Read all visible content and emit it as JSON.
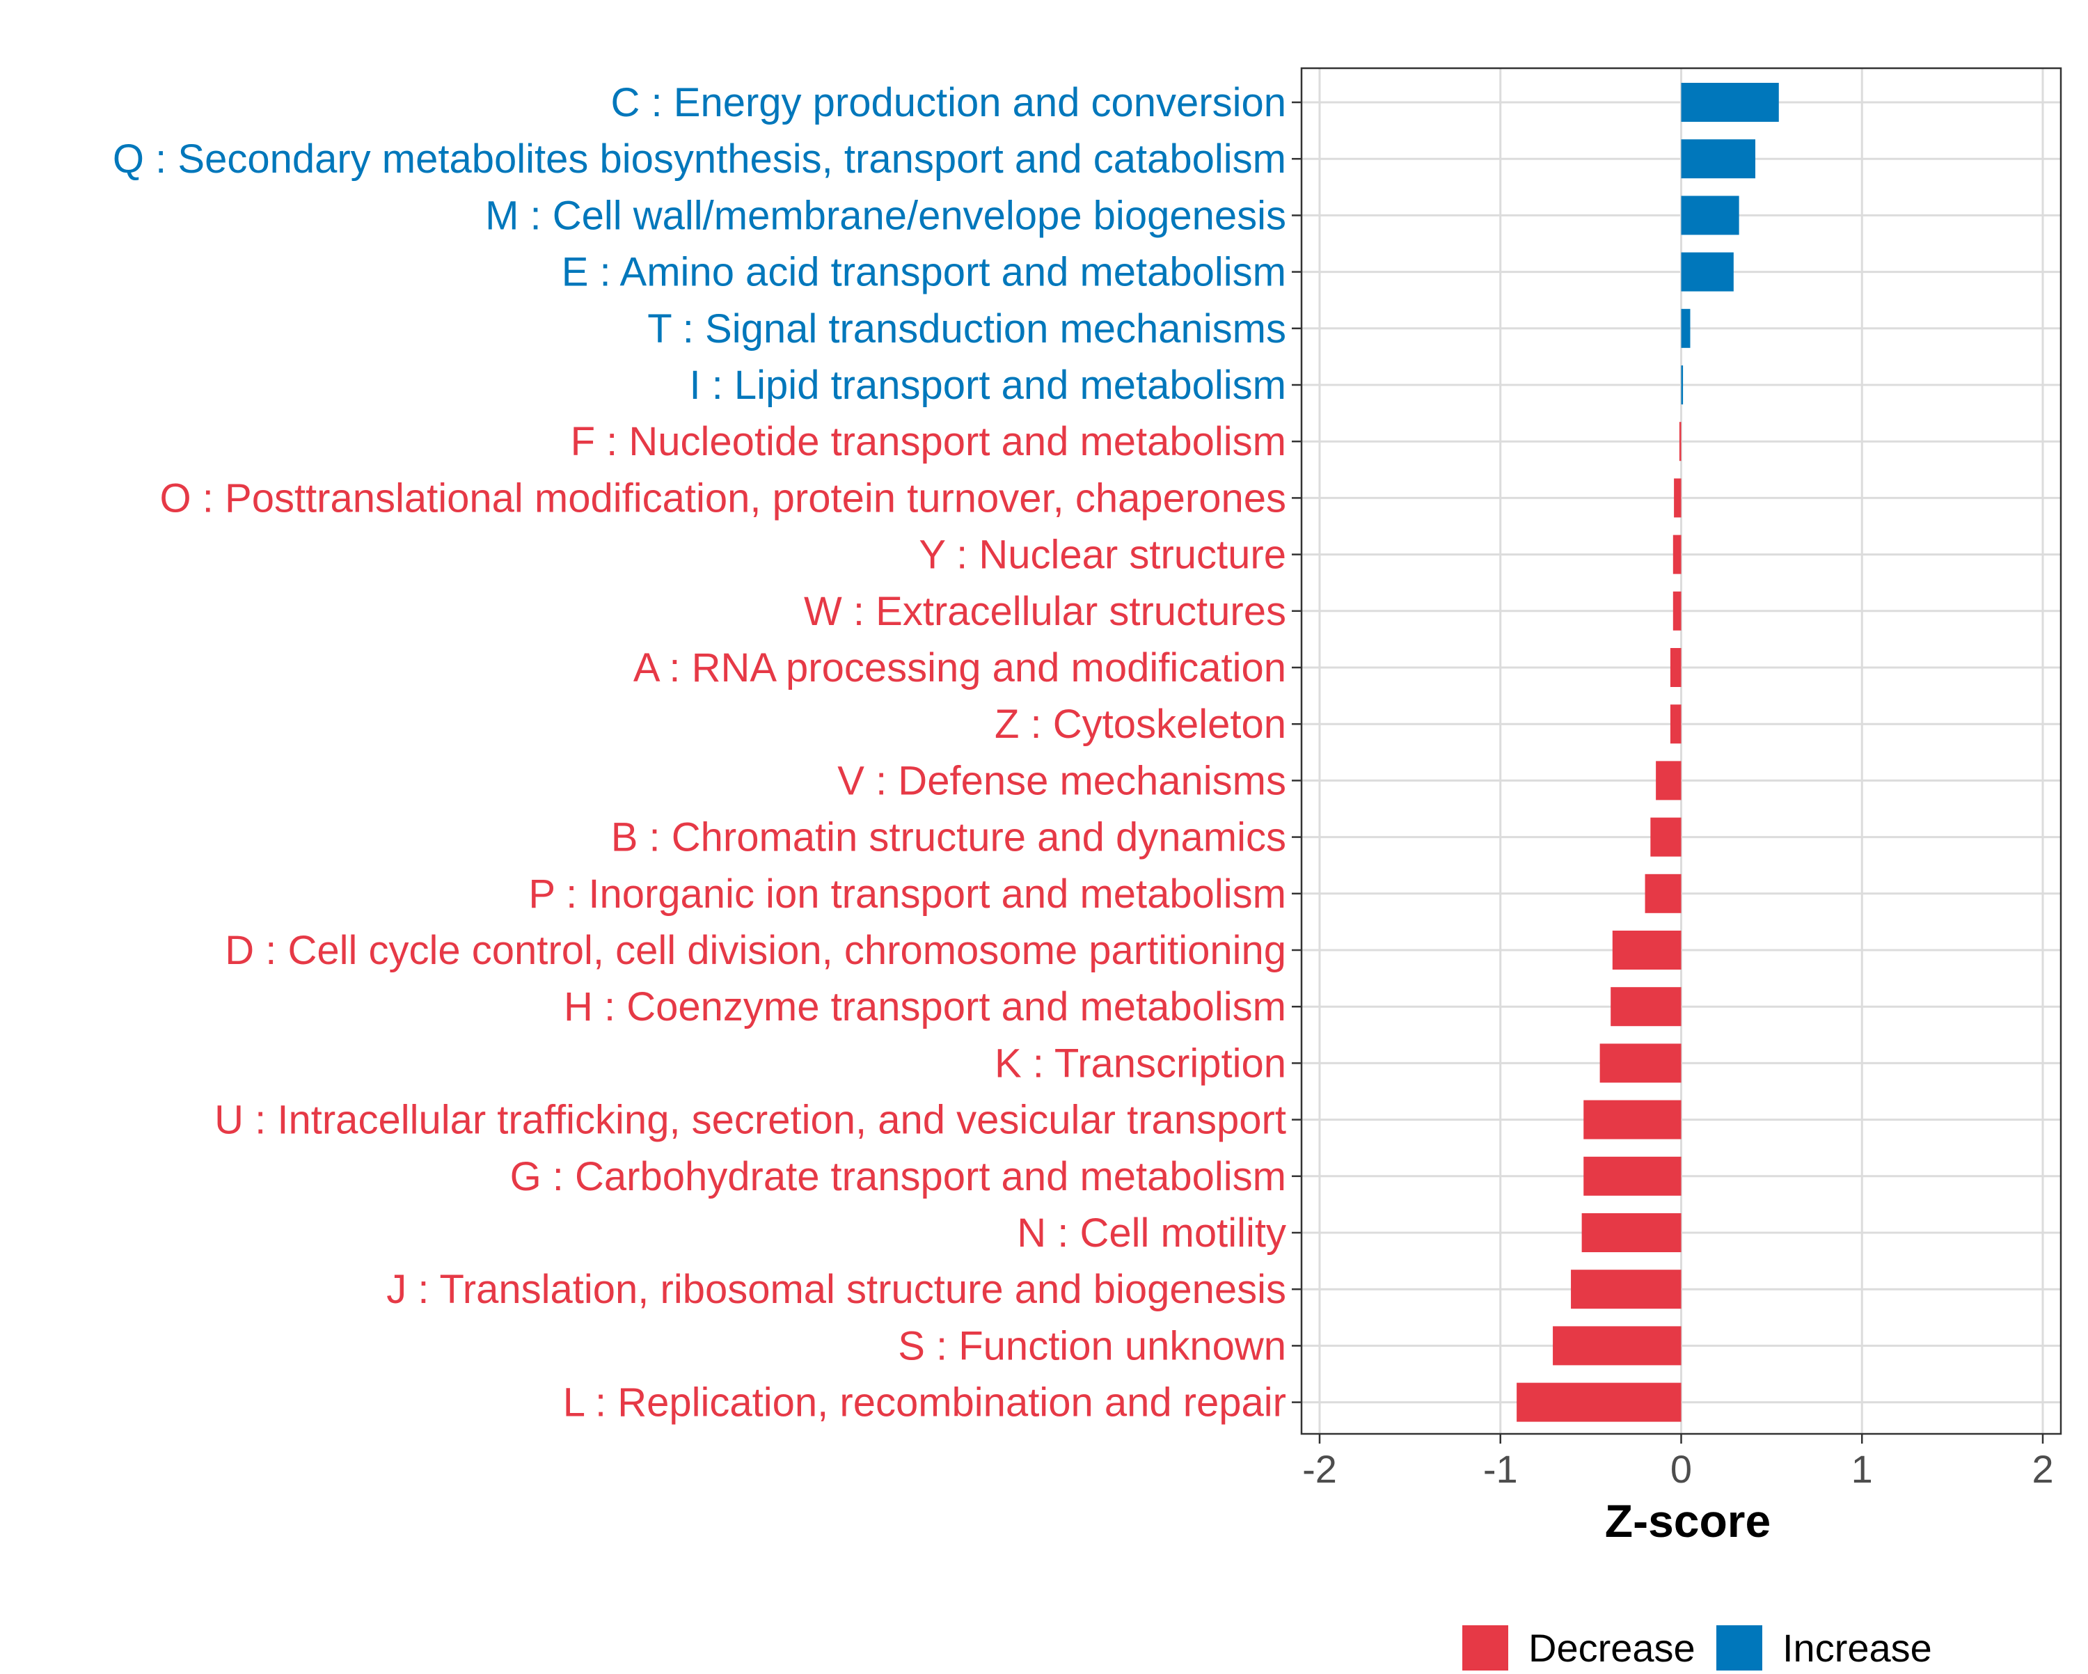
{
  "chart_data": {
    "type": "bar",
    "orientation": "horizontal",
    "xlabel": "Z-score",
    "ylabel": "",
    "xlim": [
      -2.1,
      2.1
    ],
    "xticks": [
      -2,
      -1,
      0,
      1,
      2
    ],
    "xtick_labels": [
      "-2",
      "-1",
      "0",
      "1",
      "2"
    ],
    "grid": true,
    "legend_position": "bottom",
    "colors": {
      "Decrease": "#E63946",
      "Increase": "#0077BB"
    },
    "legend": [
      {
        "label": "Decrease",
        "color": "#E63946"
      },
      {
        "label": "Increase",
        "color": "#0077BB"
      }
    ],
    "categories": [
      "C : Energy production and conversion",
      "Q : Secondary metabolites biosynthesis, transport and catabolism",
      "M : Cell wall/membrane/envelope biogenesis",
      "E : Amino acid transport and metabolism",
      "T : Signal transduction mechanisms",
      "I : Lipid transport and metabolism",
      "F : Nucleotide transport and metabolism",
      "O : Posttranslational modification, protein turnover, chaperones",
      "Y : Nuclear structure",
      "W : Extracellular structures",
      "A : RNA processing and modification",
      "Z : Cytoskeleton",
      "V : Defense mechanisms",
      "B : Chromatin structure and dynamics",
      "P : Inorganic ion transport and metabolism",
      "D : Cell cycle control, cell division, chromosome partitioning",
      "H : Coenzyme transport and metabolism",
      "K : Transcription",
      "U : Intracellular trafficking, secretion, and vesicular transport",
      "G : Carbohydrate transport and metabolism",
      "N : Cell motility",
      "J : Translation, ribosomal structure and biogenesis",
      "S : Function unknown",
      "L : Replication, recombination and repair"
    ],
    "values": [
      0.54,
      0.41,
      0.32,
      0.29,
      0.05,
      0.01,
      -0.01,
      -0.04,
      -0.045,
      -0.045,
      -0.06,
      -0.06,
      -0.14,
      -0.17,
      -0.2,
      -0.38,
      -0.39,
      -0.45,
      -0.54,
      -0.54,
      -0.55,
      -0.61,
      -0.71,
      -0.91
    ],
    "groups": [
      "Increase",
      "Increase",
      "Increase",
      "Increase",
      "Increase",
      "Increase",
      "Decrease",
      "Decrease",
      "Decrease",
      "Decrease",
      "Decrease",
      "Decrease",
      "Decrease",
      "Decrease",
      "Decrease",
      "Decrease",
      "Decrease",
      "Decrease",
      "Decrease",
      "Decrease",
      "Decrease",
      "Decrease",
      "Decrease",
      "Decrease"
    ]
  }
}
